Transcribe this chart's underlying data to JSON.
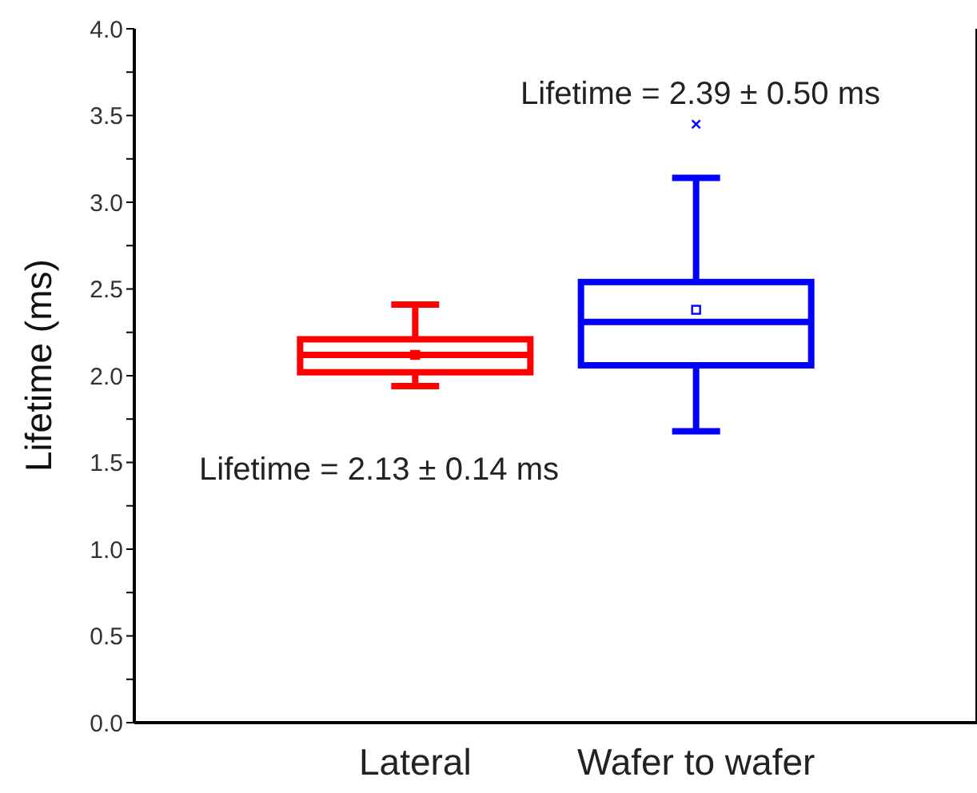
{
  "chart_data": {
    "type": "box",
    "ylabel": "Lifetime (ms)",
    "categories": [
      "Lateral",
      "Wafer to wafer"
    ],
    "ylim": [
      0,
      4
    ],
    "yticks": [
      {
        "value": 0,
        "label": "0.0"
      },
      {
        "value": 0.25,
        "label": null
      },
      0.5,
      {
        "value": 0.75,
        "label": null
      },
      {
        "value": 1,
        "label": "1.0"
      },
      {
        "value": 1.25,
        "label": null
      },
      1.5,
      {
        "value": 1.75,
        "label": null
      },
      {
        "value": 2,
        "label": "2.0"
      },
      {
        "value": 2.25,
        "label": null
      },
      2.5,
      {
        "value": 2.75,
        "label": null
      },
      {
        "value": 3,
        "label": "3.0"
      },
      {
        "value": 3.25,
        "label": null
      },
      3.5,
      {
        "value": 3.75,
        "label": null
      },
      {
        "value": 4,
        "label": "4.0"
      }
    ],
    "series": [
      {
        "color": "#ff0000",
        "boxes": [
          {
            "low": 1.94,
            "q1": 2.02,
            "median": 2.12,
            "q3": 2.21,
            "high": 2.41,
            "mean": 2.12
          },
          null
        ]
      },
      {
        "color": "#0000ff",
        "boxes": [
          null,
          {
            "low": 1.68,
            "q1": 2.06,
            "median": 2.31,
            "q3": 2.54,
            "high": 3.14,
            "mean": 2.38,
            "outliers": [
              3.45
            ]
          }
        ]
      }
    ],
    "annotations": [
      "Lifetime = 2.13 ± 0.14 ms",
      "Lifetime = 2.39 ± 0.50 ms"
    ]
  }
}
